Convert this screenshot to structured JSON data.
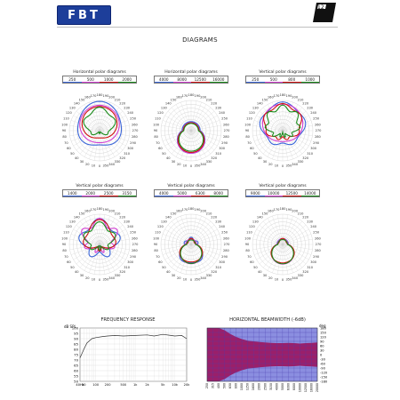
{
  "brand": {
    "logo_text": "FBT",
    "model_badge": "12"
  },
  "page_title": "DIAGRAMS",
  "colors": {
    "logo_blue": "#1d3e9a",
    "series": [
      "#3b66d9",
      "#d23cd2",
      "#cf1010",
      "#1a8a1a"
    ]
  },
  "polar_diagrams": [
    {
      "title": "Horizontal polar diagrams",
      "freqs": [
        "250",
        "500",
        "1000",
        "2000"
      ]
    },
    {
      "title": "Horizontal polar diagrams",
      "freqs": [
        "4000",
        "8000",
        "12500",
        "16000"
      ]
    },
    {
      "title": "Vertical polar diagrams",
      "freqs": [
        "250",
        "500",
        "800",
        "1000"
      ]
    },
    {
      "title": "Vertical polar diagrams",
      "freqs": [
        "1400",
        "2000",
        "2500",
        "3150"
      ]
    },
    {
      "title": "Vertical polar diagrams",
      "freqs": [
        "4000",
        "5000",
        "6300",
        "8000"
      ]
    },
    {
      "title": "Vertical polar diagrams",
      "freqs": [
        "9000",
        "10000",
        "12500",
        "14000"
      ]
    }
  ],
  "polar_angle_labels": [
    "180",
    "190",
    "200",
    "210",
    "220",
    "230",
    "240",
    "250",
    "260",
    "270",
    "280",
    "290",
    "300",
    "310",
    "320",
    "330",
    "340",
    "350",
    "0",
    "10",
    "20",
    "30",
    "40",
    "50",
    "60",
    "70",
    "80",
    "90",
    "100",
    "110",
    "120",
    "130",
    "140",
    "150",
    "160",
    "170"
  ],
  "frequency_response": {
    "title": "FREQUENCY RESPONSE",
    "y_unit": "dB SPL",
    "y_ticks": [
      "100",
      "95",
      "90",
      "85",
      "80",
      "75",
      "70",
      "65",
      "60",
      "55",
      "50"
    ],
    "x_ticks": [
      "40Hz",
      "50",
      "100",
      "200",
      "500",
      "1k",
      "2k",
      "5k",
      "10k",
      "20k"
    ]
  },
  "beamwidth": {
    "title": "HORIZONTAL BEAMWIDTH (-6dB)",
    "y_unit": "deg",
    "y_ticks": [
      "180",
      "150",
      "120",
      "90",
      "60",
      "30",
      "0",
      "-30",
      "-60",
      "-90",
      "-120",
      "-150",
      "-180"
    ],
    "x_ticks": [
      "250",
      "315",
      "400",
      "500",
      "630",
      "800",
      "1000",
      "1250",
      "1600",
      "2000",
      "2500",
      "3150",
      "4000",
      "5000",
      "6300",
      "8000",
      "10000",
      "12500",
      "16000",
      "20000"
    ]
  },
  "chart_data": [
    {
      "type": "line",
      "title": "FREQUENCY RESPONSE",
      "ylabel": "dB SPL",
      "ylim": [
        50,
        100
      ],
      "xscale": "log",
      "x": [
        40,
        50,
        60,
        80,
        100,
        150,
        200,
        300,
        500,
        1000,
        2000,
        3000,
        5000,
        8000,
        10000,
        15000,
        20000
      ],
      "series": [
        {
          "values": [
            72,
            80,
            86,
            90,
            91,
            92,
            92.5,
            93,
            92.5,
            93,
            93.5,
            92.5,
            94,
            93,
            92.5,
            93,
            90
          ]
        }
      ]
    },
    {
      "type": "area",
      "title": "HORIZONTAL BEAMWIDTH (-6dB)",
      "ylabel": "deg",
      "ylim": [
        -180,
        180
      ],
      "categories": [
        "250",
        "315",
        "400",
        "500",
        "630",
        "800",
        "1000",
        "1250",
        "1600",
        "2000",
        "2500",
        "3150",
        "4000",
        "5000",
        "6300",
        "8000",
        "10000",
        "12500",
        "16000",
        "20000"
      ],
      "values": [
        180,
        180,
        180,
        165,
        140,
        120,
        105,
        95,
        90,
        85,
        82,
        80,
        78,
        78,
        80,
        78,
        75,
        78,
        80,
        82
      ]
    }
  ]
}
